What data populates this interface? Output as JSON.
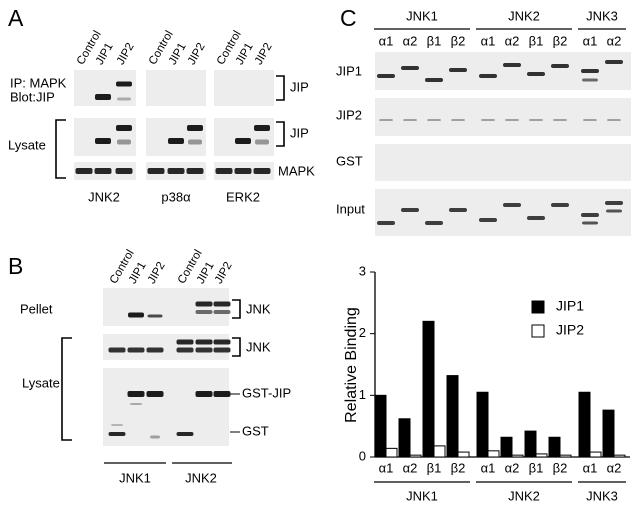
{
  "panel_a": {
    "letter": "A",
    "lanes": [
      "Control",
      "JIP1",
      "JIP2"
    ],
    "ip_label": "IP: MAPK",
    "blot_label": "Blot:JIP",
    "lysate_label": "Lysate",
    "right_labels": [
      "JIP",
      "JIP",
      "MAPK"
    ],
    "kinases": [
      "JNK2",
      "p38α",
      "ERK2"
    ]
  },
  "panel_b": {
    "letter": "B",
    "lanes": [
      "Control",
      "JIP1",
      "JIP2"
    ],
    "left_labels": [
      "Pellet",
      "Lysate"
    ],
    "right_labels": [
      "JNK",
      "JNK",
      "GST-JIP",
      "GST"
    ],
    "kinases": [
      "JNK1",
      "JNK2"
    ]
  },
  "panel_c": {
    "letter": "C",
    "row_labels": [
      "JIP1",
      "JIP2",
      "GST",
      "Input"
    ]
  },
  "chart_data": {
    "type": "bar",
    "ylabel": "Relative  Binding",
    "categories": [
      "α1",
      "α2",
      "β1",
      "β2",
      "α1",
      "α2",
      "β1",
      "β2",
      "α1",
      "α2"
    ],
    "groups": [
      "JNK1",
      "JNK2",
      "JNK3"
    ],
    "series": [
      {
        "name": "JIP1",
        "color": "#000000",
        "values": [
          1.0,
          0.62,
          2.2,
          1.32,
          1.05,
          0.32,
          0.42,
          0.32,
          1.05,
          0.76
        ]
      },
      {
        "name": "JIP2",
        "color": "#ffffff",
        "values": [
          0.14,
          0.03,
          0.18,
          0.08,
          0.1,
          0.03,
          0.05,
          0.03,
          0.08,
          0.03
        ]
      }
    ],
    "ylim": [
      0,
      3
    ],
    "yticks": [
      0,
      1,
      2,
      3
    ],
    "legend": "upper right"
  }
}
